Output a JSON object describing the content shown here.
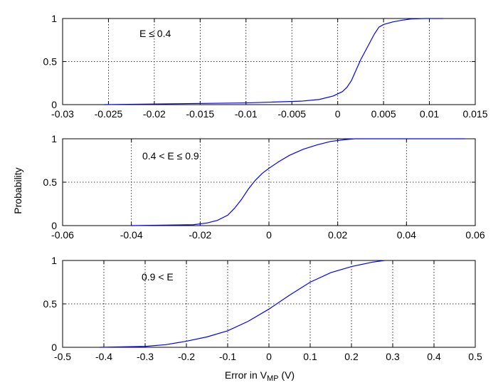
{
  "chart_data": [
    {
      "type": "line",
      "annotation": "E ≤ 0.4",
      "xlim": [
        -0.03,
        0.015
      ],
      "ylim": [
        0,
        1
      ],
      "xticks": [
        "-0.03",
        "-0.025",
        "-0.02",
        "-0.015",
        "-0.01",
        "-0.005",
        "0",
        "0.005",
        "0.01",
        "0.015"
      ],
      "yticks": [
        "0",
        "0.5",
        "1"
      ],
      "grid": true,
      "series": [
        {
          "color": "#0000ff",
          "x": [
            -0.0255,
            -0.01,
            -0.004,
            -0.002,
            -0.0005,
            0.0005,
            0.001,
            0.0015,
            0.002,
            0.0025,
            0.003,
            0.0035,
            0.004,
            0.0045,
            0.005,
            0.006,
            0.007,
            0.008,
            0.0095,
            0.0115
          ],
          "y": [
            0.0,
            0.02,
            0.04,
            0.06,
            0.1,
            0.15,
            0.2,
            0.28,
            0.4,
            0.52,
            0.62,
            0.72,
            0.82,
            0.9,
            0.93,
            0.96,
            0.98,
            0.995,
            1.0,
            1.0
          ]
        }
      ]
    },
    {
      "type": "line",
      "annotation": "0.4 < E ≤ 0.9",
      "xlim": [
        -0.06,
        0.06
      ],
      "ylim": [
        0,
        1
      ],
      "xticks": [
        "-0.06",
        "-0.04",
        "-0.02",
        "0",
        "0.02",
        "0.04",
        "0.06"
      ],
      "yticks": [
        "0",
        "0.5",
        "1"
      ],
      "grid": true,
      "series": [
        {
          "color": "#0000ff",
          "x": [
            -0.04,
            -0.022,
            -0.018,
            -0.015,
            -0.012,
            -0.01,
            -0.008,
            -0.006,
            -0.004,
            -0.002,
            0.0,
            0.003,
            0.006,
            0.01,
            0.014,
            0.018,
            0.022,
            0.025,
            0.04,
            0.057
          ],
          "y": [
            0.0,
            0.01,
            0.03,
            0.06,
            0.12,
            0.2,
            0.3,
            0.42,
            0.52,
            0.6,
            0.66,
            0.74,
            0.81,
            0.88,
            0.93,
            0.97,
            0.99,
            1.0,
            1.0,
            1.0
          ]
        }
      ]
    },
    {
      "type": "line",
      "annotation": "0.9 < E",
      "xlim": [
        -0.5,
        0.5
      ],
      "ylim": [
        0,
        1
      ],
      "xticks": [
        "-0.5",
        "-0.4",
        "-0.3",
        "-0.2",
        "-0.1",
        "0",
        "0.1",
        "0.2",
        "0.3",
        "0.4",
        "0.5"
      ],
      "yticks": [
        "0",
        "0.5",
        "1"
      ],
      "grid": true,
      "xlabel_main": "Error in V",
      "xlabel_sub": "MP",
      "xlabel_unit": " (V)",
      "series": [
        {
          "color": "#0000ff",
          "x": [
            -0.41,
            -0.3,
            -0.25,
            -0.2,
            -0.15,
            -0.1,
            -0.05,
            0.0,
            0.05,
            0.1,
            0.15,
            0.2,
            0.25,
            0.28
          ],
          "y": [
            0.0,
            0.01,
            0.03,
            0.07,
            0.12,
            0.19,
            0.3,
            0.44,
            0.6,
            0.75,
            0.86,
            0.93,
            0.98,
            1.0
          ]
        }
      ]
    }
  ],
  "ylabel": "Probability"
}
